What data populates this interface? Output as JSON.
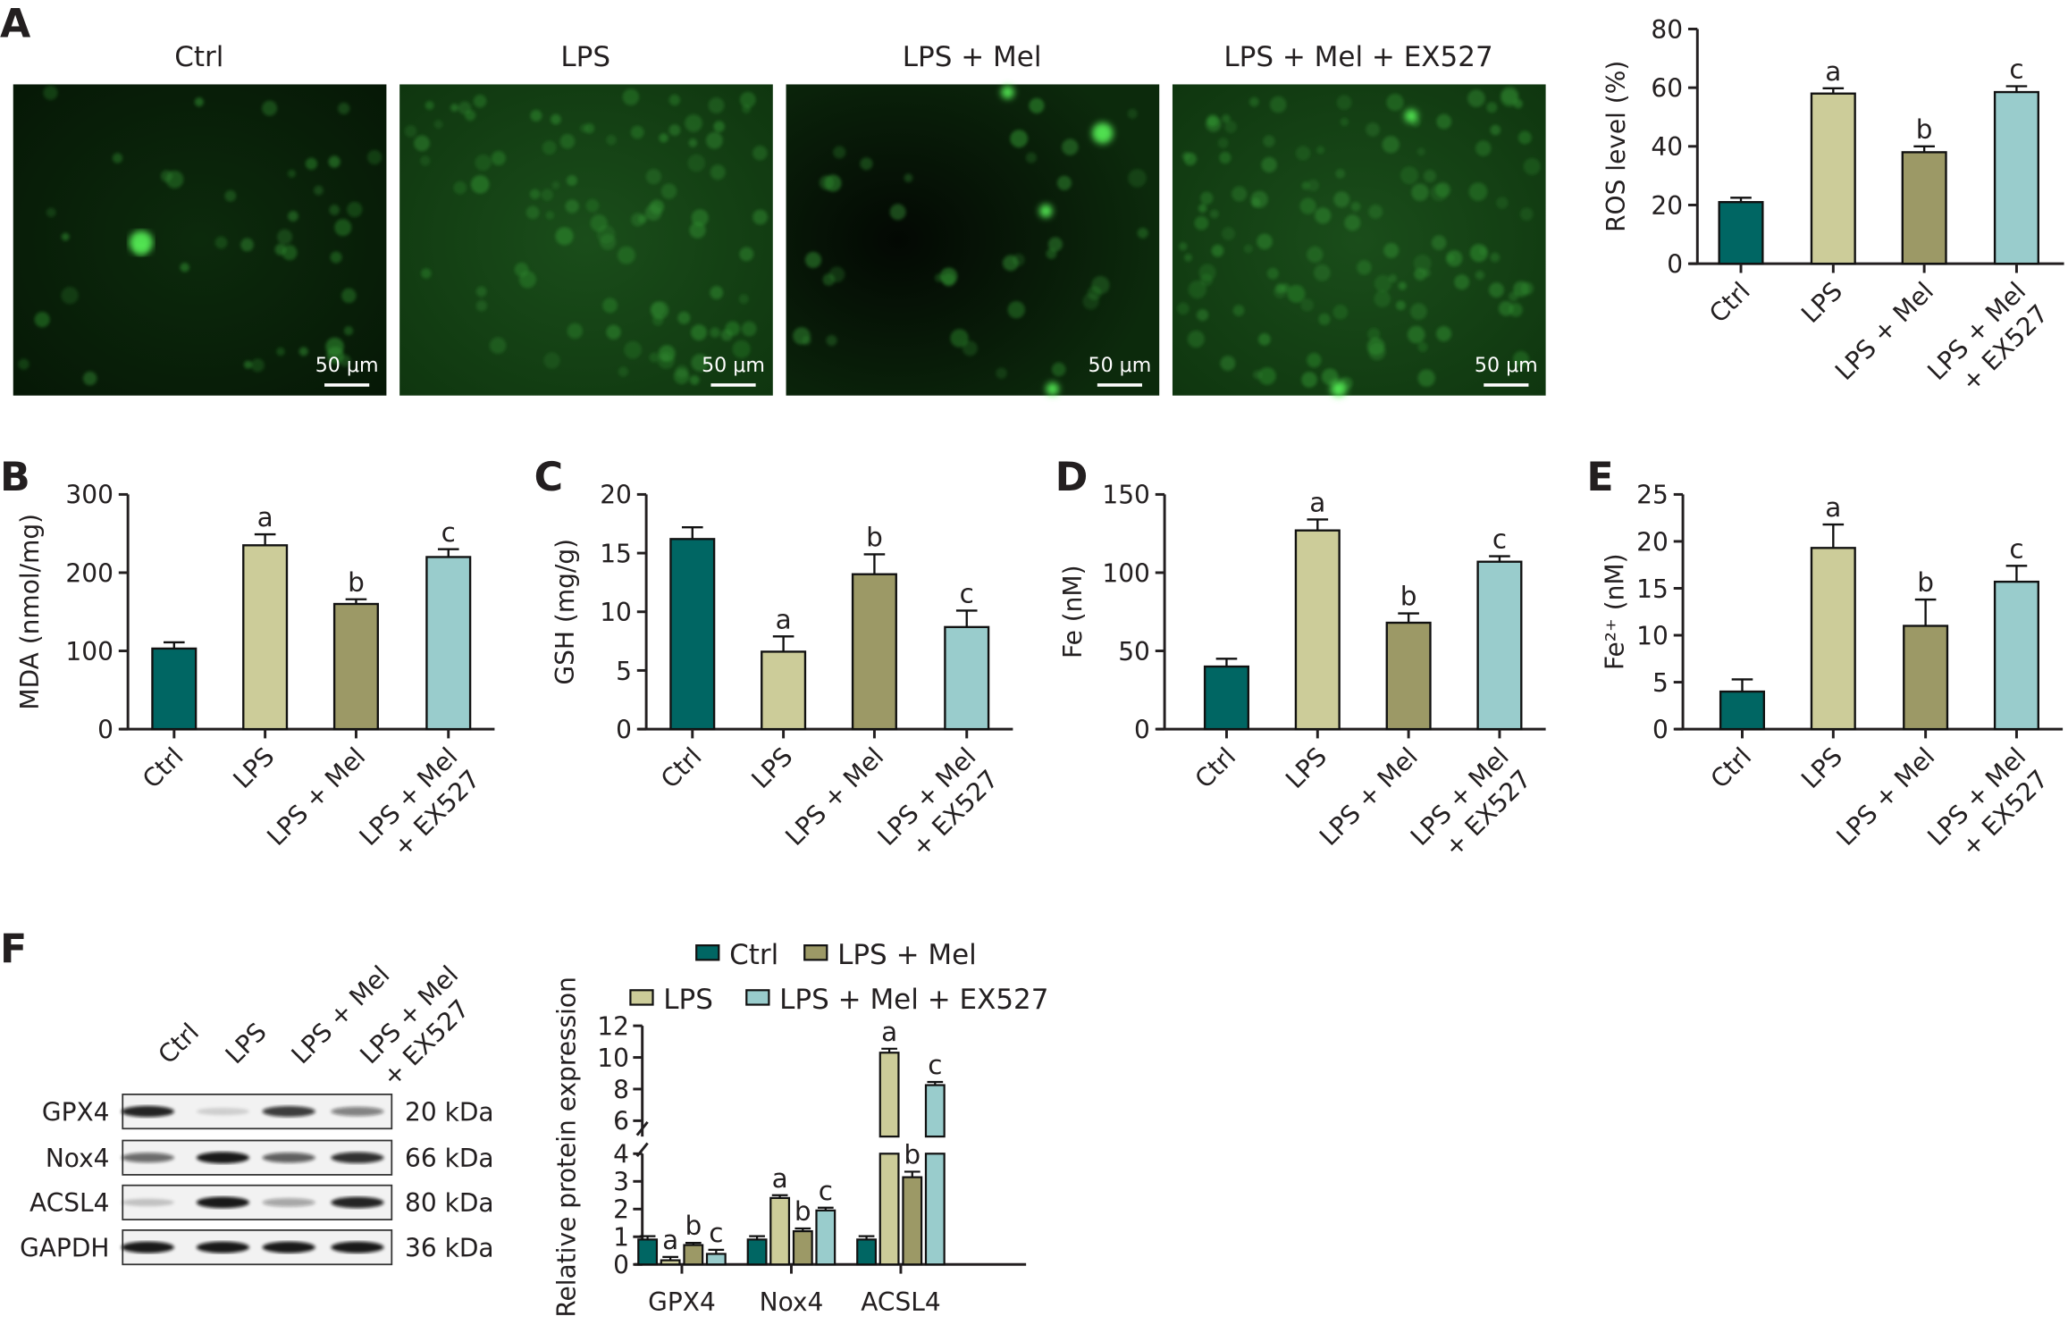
{
  "panel_letters": [
    "A",
    "B",
    "C",
    "D",
    "E",
    "F"
  ],
  "colors": {
    "Ctrl": "#006663",
    "LPS": "#cccc99",
    "LPS + Mel": "#9c9966",
    "LPS + Mel + EX527": "#99cccc"
  },
  "micrographs": {
    "titles": [
      "Ctrl",
      "LPS",
      "LPS + Mel",
      "LPS + Mel + EX527"
    ],
    "scale_bar_label": "50 μm",
    "stain_color": "#22c422"
  },
  "western_blot": {
    "lanes": [
      [
        "Ctrl"
      ],
      [
        "LPS"
      ],
      [
        "LPS + Mel"
      ],
      [
        "LPS + Mel",
        "+ EX527"
      ]
    ],
    "rows": [
      {
        "protein": "GPX4",
        "size": "20 kDa",
        "band_intensity": [
          0.9,
          0.15,
          0.8,
          0.5
        ]
      },
      {
        "protein": "Nox4",
        "size": "66 kDa",
        "band_intensity": [
          0.6,
          0.95,
          0.65,
          0.85
        ]
      },
      {
        "protein": "ACSL4",
        "size": "80 kDa",
        "band_intensity": [
          0.2,
          0.95,
          0.35,
          0.9
        ]
      },
      {
        "protein": "GAPDH",
        "size": "36 kDa",
        "band_intensity": [
          0.95,
          0.95,
          0.95,
          0.95
        ]
      }
    ]
  },
  "chart_data": [
    {
      "type": "bar",
      "panel": "A",
      "ylabel": "ROS level (%)",
      "ylim": [
        0,
        80
      ],
      "yticks": [
        "0",
        "20",
        "40",
        "60",
        "80"
      ],
      "categories": [
        "Ctrl",
        "LPS",
        "LPS + Mel",
        "LPS + Mel + EX527"
      ],
      "category_lines": [
        [
          "Ctrl"
        ],
        [
          "LPS"
        ],
        [
          "LPS + Mel"
        ],
        [
          "LPS + Mel",
          "+ EX527"
        ]
      ],
      "values": [
        21,
        58,
        38,
        58.5
      ],
      "errors": [
        1.5,
        1.8,
        2,
        2
      ],
      "sig": [
        "",
        "a",
        "b",
        "c"
      ]
    },
    {
      "type": "bar",
      "panel": "B",
      "ylabel": "MDA (nmol/mg)",
      "ylim": [
        0,
        300
      ],
      "yticks": [
        "0",
        "100",
        "200",
        "300"
      ],
      "categories": [
        "Ctrl",
        "LPS",
        "LPS + Mel",
        "LPS + Mel + EX527"
      ],
      "category_lines": [
        [
          "Ctrl"
        ],
        [
          "LPS"
        ],
        [
          "LPS + Mel"
        ],
        [
          "LPS + Mel",
          "+ EX527"
        ]
      ],
      "values": [
        103,
        235,
        160,
        220
      ],
      "errors": [
        8,
        14,
        6,
        10
      ],
      "sig": [
        "",
        "a",
        "b",
        "c"
      ]
    },
    {
      "type": "bar",
      "panel": "C",
      "ylabel": "GSH (mg/g)",
      "ylim": [
        0,
        20
      ],
      "yticks": [
        "0",
        "5",
        "10",
        "15",
        "20"
      ],
      "categories": [
        "Ctrl",
        "LPS",
        "LPS + Mel",
        "LPS + Mel + EX527"
      ],
      "category_lines": [
        [
          "Ctrl"
        ],
        [
          "LPS"
        ],
        [
          "LPS + Mel"
        ],
        [
          "LPS + Mel",
          "+ EX527"
        ]
      ],
      "values": [
        16.2,
        6.6,
        13.2,
        8.7
      ],
      "errors": [
        1,
        1.3,
        1.7,
        1.4
      ],
      "sig": [
        "",
        "a",
        "b",
        "c"
      ]
    },
    {
      "type": "bar",
      "panel": "D",
      "ylabel": "Fe (nM)",
      "ylim": [
        0,
        150
      ],
      "yticks": [
        "0",
        "50",
        "100",
        "150"
      ],
      "categories": [
        "Ctrl",
        "LPS",
        "LPS + Mel",
        "LPS + Mel + EX527"
      ],
      "category_lines": [
        [
          "Ctrl"
        ],
        [
          "LPS"
        ],
        [
          "LPS + Mel"
        ],
        [
          "LPS + Mel",
          "+ EX527"
        ]
      ],
      "values": [
        40,
        127,
        68,
        107
      ],
      "errors": [
        5,
        7,
        6,
        3.5
      ],
      "sig": [
        "",
        "a",
        "b",
        "c"
      ]
    },
    {
      "type": "bar",
      "panel": "E",
      "ylabel": "Fe²⁺ (nM)",
      "ylim": [
        0,
        25
      ],
      "yticks": [
        "0",
        "5",
        "10",
        "15",
        "20",
        "25"
      ],
      "categories": [
        "Ctrl",
        "LPS",
        "LPS + Mel",
        "LPS + Mel + EX527"
      ],
      "category_lines": [
        [
          "Ctrl"
        ],
        [
          "LPS"
        ],
        [
          "LPS + Mel"
        ],
        [
          "LPS + Mel",
          "+ EX527"
        ]
      ],
      "values": [
        4,
        19.3,
        11,
        15.7
      ],
      "errors": [
        1.3,
        2.5,
        2.8,
        1.7
      ],
      "sig": [
        "",
        "a",
        "b",
        "c"
      ]
    },
    {
      "type": "bar",
      "panel": "F",
      "ylabel": "Relative protein expression",
      "ylim": [
        0,
        12
      ],
      "axis_break": [
        4,
        5
      ],
      "yticks": [
        "0",
        "1",
        "2",
        "3",
        "4",
        "6",
        "8",
        "10",
        "12"
      ],
      "categories": [
        "GPX4",
        "Nox4",
        "ACSL4"
      ],
      "legend": [
        "Ctrl",
        "LPS + Mel",
        "LPS",
        "LPS + Mel + EX527"
      ],
      "legend_position": "top",
      "series": [
        {
          "name": "Ctrl",
          "values": [
            0.9,
            0.9,
            0.9
          ],
          "errors": [
            0.12,
            0.12,
            0.12
          ],
          "sig": [
            "",
            "",
            ""
          ]
        },
        {
          "name": "LPS",
          "values": [
            0.15,
            2.4,
            10.3
          ],
          "errors": [
            0.12,
            0.1,
            0.25
          ],
          "sig": [
            "a",
            "a",
            "a"
          ]
        },
        {
          "name": "LPS + Mel",
          "values": [
            0.7,
            1.2,
            3.15
          ],
          "errors": [
            0.08,
            0.1,
            0.2
          ],
          "sig": [
            "b",
            "b",
            "b"
          ]
        },
        {
          "name": "LPS + Mel + EX527",
          "values": [
            0.38,
            1.95,
            8.25
          ],
          "errors": [
            0.15,
            0.1,
            0.2
          ],
          "sig": [
            "c",
            "c",
            "c"
          ]
        }
      ]
    }
  ]
}
